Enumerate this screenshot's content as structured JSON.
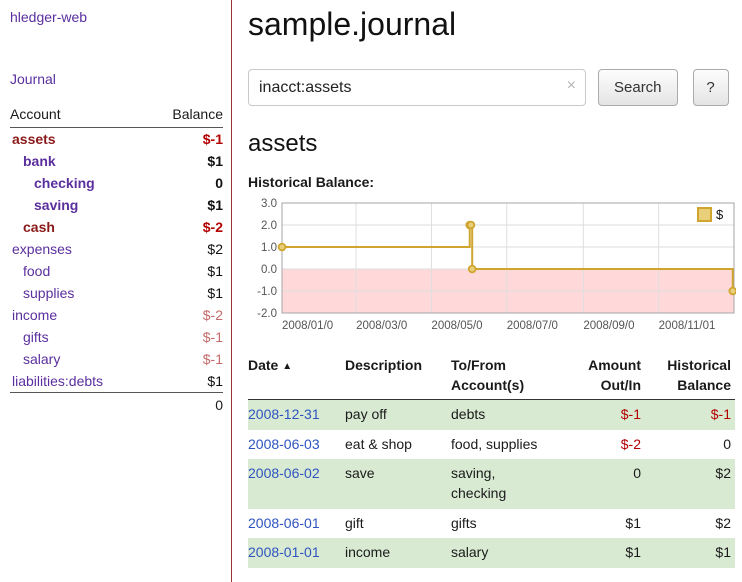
{
  "colors": {
    "link_purple": "#5b2f9e",
    "negative_strong": "#b30000",
    "negative_account_name": "#8b1a1a",
    "negative_muted": "#c46a6a",
    "date_link_blue": "#2f54c0",
    "row_shade_green": "#d9ead3",
    "sidebar_divider_red": "#993333",
    "chart_line_gold": "#cfa52e",
    "chart_negative_region_pink": "#ffd9d9"
  },
  "sidebar": {
    "app_title": "hledger-web",
    "journal_link": "Journal",
    "table": {
      "account_header": "Account",
      "balance_header": "Balance",
      "rows": [
        {
          "name": "assets",
          "depth": 0,
          "bold": true,
          "name_negative": true,
          "balance": "$-1",
          "balance_style": "neg"
        },
        {
          "name": "bank",
          "depth": 1,
          "bold": true,
          "name_negative": false,
          "balance": "$1",
          "balance_style": "pos"
        },
        {
          "name": "checking",
          "depth": 2,
          "bold": true,
          "name_negative": false,
          "balance": "0",
          "balance_style": "pos"
        },
        {
          "name": "saving",
          "depth": 2,
          "bold": true,
          "name_negative": false,
          "balance": "$1",
          "balance_style": "pos"
        },
        {
          "name": "cash",
          "depth": 1,
          "bold": true,
          "name_negative": true,
          "balance": "$-2",
          "balance_style": "neg"
        },
        {
          "name": "expenses",
          "depth": 0,
          "bold": false,
          "name_negative": false,
          "balance": "$2",
          "balance_style": "pos"
        },
        {
          "name": "food",
          "depth": 1,
          "bold": false,
          "name_negative": false,
          "balance": "$1",
          "balance_style": "pos"
        },
        {
          "name": "supplies",
          "depth": 1,
          "bold": false,
          "name_negative": false,
          "balance": "$1",
          "balance_style": "pos"
        },
        {
          "name": "income",
          "depth": 0,
          "bold": false,
          "name_negative": false,
          "balance": "$-2",
          "balance_style": "negmuted"
        },
        {
          "name": "gifts",
          "depth": 1,
          "bold": false,
          "name_negative": false,
          "balance": "$-1",
          "balance_style": "negmuted"
        },
        {
          "name": "salary",
          "depth": 1,
          "bold": false,
          "name_negative": false,
          "balance": "$-1",
          "balance_style": "negmuted"
        },
        {
          "name": "liabilities:debts",
          "depth": 0,
          "bold": false,
          "name_negative": false,
          "balance": "$1",
          "balance_style": "pos"
        }
      ],
      "total": "0"
    }
  },
  "main": {
    "title": "sample.journal",
    "search": {
      "value": "inacct:assets",
      "clear_icon": "×",
      "search_button": "Search",
      "help_button": "?"
    },
    "account_heading": "assets",
    "chart_label": "Historical Balance:",
    "register": {
      "headers": {
        "date": "Date",
        "sort_icon": "▲",
        "description": "Description",
        "tofrom_line1": "To/From",
        "tofrom_line2": "Account(s)",
        "amount_line1": "Amount",
        "amount_line2": "Out/In",
        "historical_line1": "Historical",
        "historical_line2": "Balance"
      },
      "rows": [
        {
          "date": "2008-12-31",
          "description": "pay off",
          "accounts": "debts",
          "amount": "$-1",
          "amount_negative": true,
          "balance": "$-1",
          "balance_negative": true,
          "shaded": true
        },
        {
          "date": "2008-06-03",
          "description": "eat & shop",
          "accounts": "food, supplies",
          "amount": "$-2",
          "amount_negative": true,
          "balance": "0",
          "balance_negative": false,
          "shaded": false
        },
        {
          "date": "2008-06-02",
          "description": "save",
          "accounts": "saving, checking",
          "amount": "0",
          "amount_negative": false,
          "balance": "$2",
          "balance_negative": false,
          "shaded": true
        },
        {
          "date": "2008-06-01",
          "description": "gift",
          "accounts": "gifts",
          "amount": "$1",
          "amount_negative": false,
          "balance": "$2",
          "balance_negative": false,
          "shaded": false
        },
        {
          "date": "2008-01-01",
          "description": "income",
          "accounts": "salary",
          "amount": "$1",
          "amount_negative": false,
          "balance": "$1",
          "balance_negative": false,
          "shaded": true
        }
      ]
    }
  },
  "chart_data": {
    "type": "line",
    "step": true,
    "title": "Historical Balance:",
    "legend": {
      "position": "top-right",
      "label": "$"
    },
    "ylim": [
      -2,
      3
    ],
    "xlim_days": [
      0,
      366
    ],
    "yticks": [
      {
        "value": 3,
        "label": "3.0"
      },
      {
        "value": 2,
        "label": "2.0"
      },
      {
        "value": 1,
        "label": "1.0"
      },
      {
        "value": 0,
        "label": "0.0"
      },
      {
        "value": -1,
        "label": "-1.0"
      },
      {
        "value": -2,
        "label": "-2.0"
      }
    ],
    "xticks": [
      {
        "day": 0,
        "label": "2008/01/0"
      },
      {
        "day": 60,
        "label": "2008/03/0"
      },
      {
        "day": 121,
        "label": "2008/05/0"
      },
      {
        "day": 182,
        "label": "2008/07/0"
      },
      {
        "day": 244,
        "label": "2008/09/0"
      },
      {
        "day": 305,
        "label": "2008/11/01"
      }
    ],
    "series": [
      {
        "name": "$",
        "color": "#cfa52e",
        "marker_fill": "#e9cf7a",
        "points": [
          {
            "date": "2008-01-01",
            "day": 0,
            "value": 1
          },
          {
            "date": "2008-06-01",
            "day": 152,
            "value": 2
          },
          {
            "date": "2008-06-02",
            "day": 153,
            "value": 2
          },
          {
            "date": "2008-06-03",
            "day": 154,
            "value": 0
          },
          {
            "date": "2008-12-31",
            "day": 365,
            "value": -1
          }
        ]
      }
    ],
    "negative_region_color": "#ffd9d9",
    "grid": true
  }
}
